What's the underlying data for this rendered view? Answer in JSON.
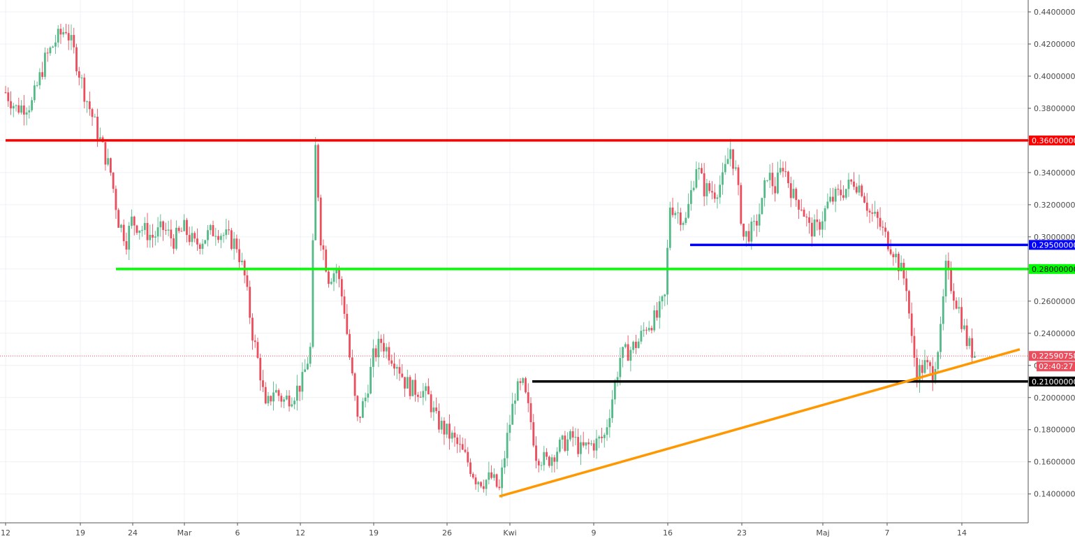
{
  "chart_data": {
    "type": "candlestick",
    "title": "",
    "xlabel": "",
    "ylabel": "",
    "y_range": [
      0.128,
      0.447
    ],
    "y_ticks": [
      "0.14000000",
      "0.16000000",
      "0.18000000",
      "0.20000000",
      "0.22000000",
      "0.24000000",
      "0.26000000",
      "0.28000000",
      "0.30000000",
      "0.32000000",
      "0.34000000",
      "0.36000000",
      "0.38000000",
      "0.40000000",
      "0.42000000",
      "0.44000000"
    ],
    "x_ticks": [
      "12",
      "19",
      "24",
      "Mar",
      "6",
      "12",
      "19",
      "26",
      "Kwi",
      "9",
      "16",
      "23",
      "Maj",
      "7",
      "14"
    ],
    "grid": true,
    "up_color": "#53b987",
    "down_color": "#eb4d5c",
    "horizontal_levels": [
      {
        "value": 0.36,
        "label": "0.36000000",
        "color": "#ff0000"
      },
      {
        "value": 0.295,
        "label": "0.29500000",
        "color": "#0000ff"
      },
      {
        "value": 0.28,
        "label": "0.28000000",
        "color": "#00ff00"
      },
      {
        "value": 0.21,
        "label": "0.21000000",
        "color": "#000000"
      }
    ],
    "current_price": {
      "value": 0.2259,
      "label": "0.22590758",
      "countdown": "02:40:27",
      "color": "#eb4d5c"
    },
    "trendline": {
      "color": "#ff9800",
      "from": {
        "x_index": 188,
        "y": 0.1385
      },
      "to": {
        "x_index": 369,
        "y": 0.23
      }
    },
    "close_path": [
      [
        0,
        0.39
      ],
      [
        4,
        0.38
      ],
      [
        10,
        0.383
      ],
      [
        15,
        0.41
      ],
      [
        19,
        0.422
      ],
      [
        23,
        0.43
      ],
      [
        26,
        0.415
      ],
      [
        30,
        0.39
      ],
      [
        34,
        0.37
      ],
      [
        37,
        0.355
      ],
      [
        40,
        0.34
      ],
      [
        43,
        0.31
      ],
      [
        46,
        0.298
      ],
      [
        48,
        0.31
      ],
      [
        52,
        0.305
      ],
      [
        56,
        0.3
      ],
      [
        60,
        0.305
      ],
      [
        64,
        0.298
      ],
      [
        68,
        0.305
      ],
      [
        72,
        0.295
      ],
      [
        76,
        0.3
      ],
      [
        80,
        0.305
      ],
      [
        84,
        0.3
      ],
      [
        88,
        0.295
      ],
      [
        91,
        0.275
      ],
      [
        94,
        0.24
      ],
      [
        97,
        0.215
      ],
      [
        99,
        0.192
      ],
      [
        102,
        0.205
      ],
      [
        106,
        0.198
      ],
      [
        110,
        0.203
      ],
      [
        113,
        0.21
      ],
      [
        116,
        0.23
      ],
      [
        118,
        0.355
      ],
      [
        120,
        0.3
      ],
      [
        123,
        0.275
      ],
      [
        126,
        0.28
      ],
      [
        129,
        0.255
      ],
      [
        131,
        0.225
      ],
      [
        134,
        0.185
      ],
      [
        137,
        0.2
      ],
      [
        140,
        0.225
      ],
      [
        143,
        0.235
      ],
      [
        146,
        0.228
      ],
      [
        149,
        0.222
      ],
      [
        152,
        0.21
      ],
      [
        155,
        0.205
      ],
      [
        158,
        0.205
      ],
      [
        161,
        0.2
      ],
      [
        164,
        0.186
      ],
      [
        167,
        0.18
      ],
      [
        170,
        0.175
      ],
      [
        173,
        0.168
      ],
      [
        176,
        0.16
      ],
      [
        179,
        0.15
      ],
      [
        182,
        0.148
      ],
      [
        185,
        0.15
      ],
      [
        188,
        0.142
      ],
      [
        191,
        0.175
      ],
      [
        194,
        0.203
      ],
      [
        197,
        0.207
      ],
      [
        200,
        0.185
      ],
      [
        202,
        0.165
      ],
      [
        206,
        0.16
      ],
      [
        210,
        0.168
      ],
      [
        213,
        0.172
      ],
      [
        216,
        0.175
      ],
      [
        219,
        0.167
      ],
      [
        222,
        0.17
      ],
      [
        225,
        0.172
      ],
      [
        228,
        0.176
      ],
      [
        231,
        0.2
      ],
      [
        234,
        0.225
      ],
      [
        238,
        0.23
      ],
      [
        241,
        0.235
      ],
      [
        244,
        0.245
      ],
      [
        248,
        0.25
      ],
      [
        251,
        0.262
      ],
      [
        253,
        0.32
      ],
      [
        256,
        0.315
      ],
      [
        259,
        0.31
      ],
      [
        263,
        0.345
      ],
      [
        266,
        0.33
      ],
      [
        270,
        0.328
      ],
      [
        273,
        0.335
      ],
      [
        276,
        0.355
      ],
      [
        278,
        0.34
      ],
      [
        281,
        0.3
      ],
      [
        285,
        0.305
      ],
      [
        288,
        0.32
      ],
      [
        290,
        0.34
      ],
      [
        293,
        0.33
      ],
      [
        296,
        0.345
      ],
      [
        300,
        0.325
      ],
      [
        303,
        0.32
      ],
      [
        306,
        0.305
      ],
      [
        309,
        0.305
      ],
      [
        313,
        0.32
      ],
      [
        316,
        0.325
      ],
      [
        320,
        0.33
      ],
      [
        323,
        0.335
      ],
      [
        326,
        0.33
      ],
      [
        329,
        0.315
      ],
      [
        332,
        0.31
      ],
      [
        335,
        0.3
      ],
      [
        338,
        0.292
      ],
      [
        340,
        0.283
      ],
      [
        343,
        0.27
      ],
      [
        345,
        0.235
      ],
      [
        347,
        0.215
      ],
      [
        350,
        0.22
      ],
      [
        353,
        0.215
      ],
      [
        356,
        0.24
      ],
      [
        358,
        0.28
      ],
      [
        361,
        0.265
      ],
      [
        363,
        0.255
      ],
      [
        366,
        0.235
      ],
      [
        369,
        0.2259
      ]
    ]
  }
}
